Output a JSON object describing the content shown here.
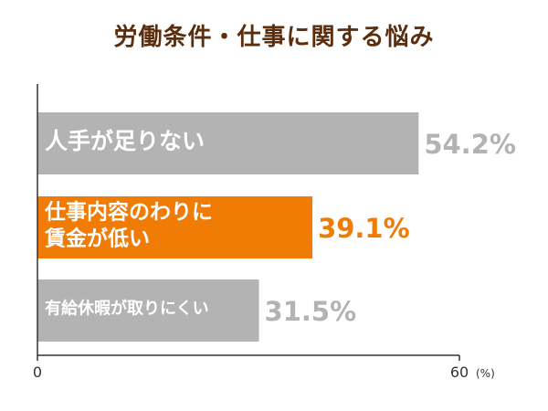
{
  "title": "労働条件・仕事に関する悩み",
  "unit": "(%)",
  "colors": {
    "highlight": "#f07b05",
    "normal": "#b3b3b3",
    "label_on_bar": "#ffffff",
    "axis": "#333333"
  },
  "chart_data": {
    "type": "bar",
    "orientation": "horizontal",
    "title": "労働条件・仕事に関する悩み",
    "xlabel": "(%)",
    "ylabel": "",
    "xlim": [
      0,
      60
    ],
    "ticks": [
      "0",
      "60"
    ],
    "categories": [
      "人手が足りない",
      "仕事内容のわりに賃金が低い",
      "有給休暇が取りにくい"
    ],
    "category_lines": [
      [
        "人手が足りない"
      ],
      [
        "仕事内容のわりに",
        "賃金が低い"
      ],
      [
        "有給休暇が取りにくい"
      ]
    ],
    "values": [
      54.2,
      39.1,
      31.5
    ],
    "value_labels": [
      "54.2%",
      "39.1%",
      "31.5%"
    ],
    "highlight_index": 1,
    "grid": false
  }
}
